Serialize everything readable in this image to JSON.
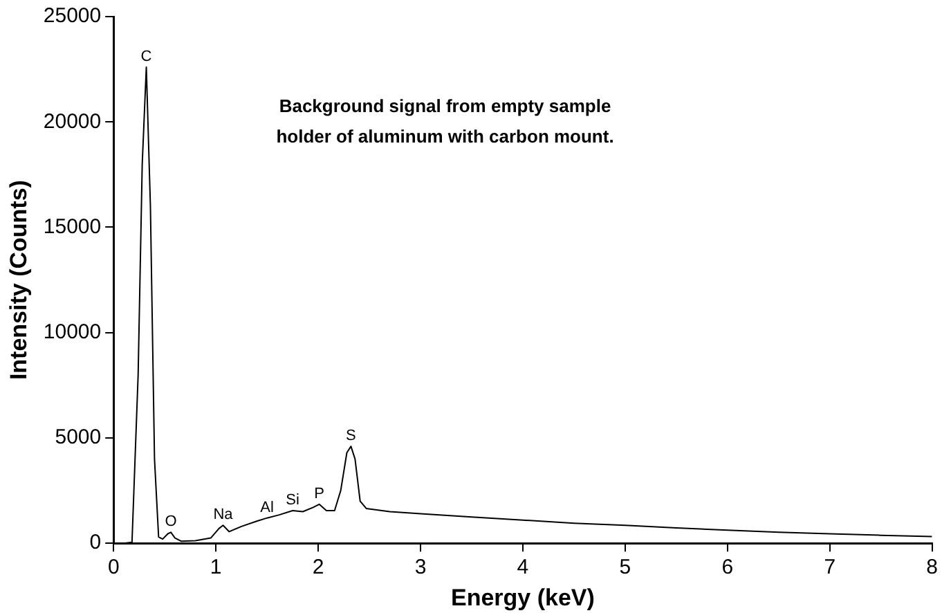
{
  "chart_data": {
    "type": "line",
    "xlabel": "Energy (keV)",
    "ylabel": "Intensity (Counts)",
    "xlim": [
      0,
      8
    ],
    "xticks": [
      0,
      1,
      2,
      3,
      4,
      5,
      6,
      7,
      8
    ],
    "ylim": [
      0,
      25000
    ],
    "yticks": [
      0,
      5000,
      10000,
      15000,
      20000,
      25000
    ],
    "grid": false,
    "legend": false,
    "marker": "none",
    "line_style": "solid",
    "series": [
      {
        "color": "#000000",
        "x": [
          0.1,
          0.18,
          0.24,
          0.28,
          0.32,
          0.36,
          0.4,
          0.44,
          0.48,
          0.53,
          0.56,
          0.6,
          0.66,
          0.8,
          0.95,
          1.03,
          1.07,
          1.13,
          1.25,
          1.4,
          1.5,
          1.62,
          1.75,
          1.85,
          1.95,
          2.01,
          2.08,
          2.16,
          2.22,
          2.28,
          2.32,
          2.36,
          2.41,
          2.47,
          2.7,
          3.0,
          3.5,
          4.0,
          4.5,
          5.0,
          5.5,
          6.0,
          6.5,
          7.0,
          7.5,
          8.0
        ],
        "values": [
          0,
          50,
          8000,
          18000,
          22600,
          16000,
          4000,
          300,
          200,
          450,
          520,
          250,
          100,
          120,
          250,
          700,
          850,
          550,
          800,
          1050,
          1200,
          1350,
          1550,
          1500,
          1700,
          1850,
          1550,
          1550,
          2500,
          4300,
          4600,
          4000,
          2000,
          1650,
          1500,
          1400,
          1250,
          1100,
          950,
          850,
          730,
          620,
          520,
          450,
          380,
          320
        ]
      }
    ],
    "annotations": [
      {
        "text": "C",
        "x": 0.32,
        "y": 22600
      },
      {
        "text": "O",
        "x": 0.56,
        "y": 520
      },
      {
        "text": "Na",
        "x": 1.07,
        "y": 850
      },
      {
        "text": "Al",
        "x": 1.5,
        "y": 1200
      },
      {
        "text": "Si",
        "x": 1.75,
        "y": 1550
      },
      {
        "text": "P",
        "x": 2.01,
        "y": 1850
      },
      {
        "text": "S",
        "x": 2.32,
        "y": 4600
      },
      "Background signal from empty sample\nholder of aluminum with carbon mount."
    ]
  }
}
